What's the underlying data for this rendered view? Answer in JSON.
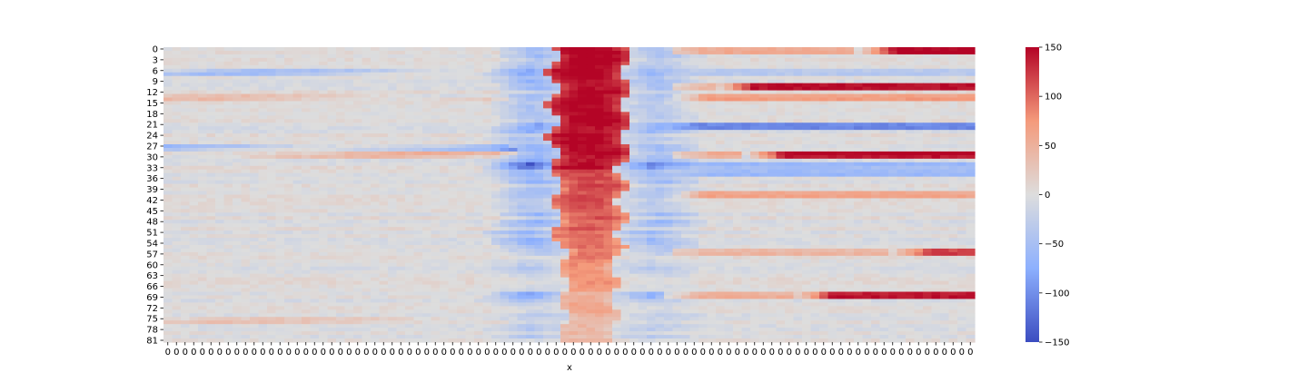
{
  "chart_data": {
    "type": "heatmap",
    "title": "",
    "xlabel": "x",
    "ylabel": "",
    "n_rows": 82,
    "n_cols": 94,
    "y_tick_labels": [
      "0",
      "3",
      "6",
      "9",
      "12",
      "15",
      "18",
      "21",
      "24",
      "27",
      "30",
      "33",
      "36",
      "39",
      "42",
      "45",
      "48",
      "51",
      "54",
      "57",
      "60",
      "63",
      "66",
      "69",
      "72",
      "75",
      "78",
      "81"
    ],
    "y_tick_rows": [
      0,
      3,
      6,
      9,
      12,
      15,
      18,
      21,
      24,
      27,
      30,
      33,
      36,
      39,
      42,
      45,
      48,
      51,
      54,
      57,
      60,
      63,
      66,
      69,
      72,
      75,
      78,
      81
    ],
    "x_tick_label": "0",
    "colormap": "coolwarm",
    "vmin": -150,
    "vmax": 150,
    "colorbar_ticks": [
      150,
      100,
      50,
      0,
      -50,
      -100,
      -150
    ],
    "colorbar_tick_labels": [
      "150",
      "100",
      "50",
      "0",
      "−50",
      "−100",
      "−150"
    ],
    "colors": {
      "low": "#3b4cc0",
      "mid": "#dddddd",
      "high": "#b40426"
    },
    "row_bands": [
      {
        "rows": [
          0,
          1
        ],
        "dip": -60,
        "peak": 150,
        "right": 150,
        "right_start": 0.86
      },
      {
        "rows": [
          6,
          7
        ],
        "dip": -90,
        "peak": 150,
        "right": -40,
        "left": -60
      },
      {
        "rows": [
          10,
          11
        ],
        "dip": -60,
        "peak": 150,
        "right": 150,
        "right_start": 0.68
      },
      {
        "rows": [
          13,
          14
        ],
        "dip": -50,
        "peak": 150,
        "right": 70,
        "left": 40
      },
      {
        "rows": [
          21,
          22
        ],
        "dip": -80,
        "peak": 150,
        "right": -100
      },
      {
        "rows": [
          27,
          28
        ],
        "dip": -70,
        "peak": 150,
        "left": -60
      },
      {
        "rows": [
          29,
          30
        ],
        "dip": -60,
        "peak": 150,
        "right": 150,
        "right_start": 0.72,
        "left": 50
      },
      {
        "rows": [
          32,
          33
        ],
        "dip": -140,
        "peak": 150,
        "right": -60
      },
      {
        "rows": [
          34,
          35
        ],
        "dip": -70,
        "peak": 120,
        "right": -60
      },
      {
        "rows": [
          40,
          41
        ],
        "dip": -60,
        "peak": 110,
        "right": 60
      },
      {
        "rows": [
          56,
          57
        ],
        "dip": -40,
        "peak": 90,
        "right": 120,
        "right_start": 0.9
      },
      {
        "rows": [
          68,
          69
        ],
        "dip": -90,
        "peak": 50,
        "right": 140,
        "right_start": 0.78
      },
      {
        "rows": [
          75,
          76
        ],
        "dip": -20,
        "peak": 40,
        "left": 30
      }
    ]
  }
}
